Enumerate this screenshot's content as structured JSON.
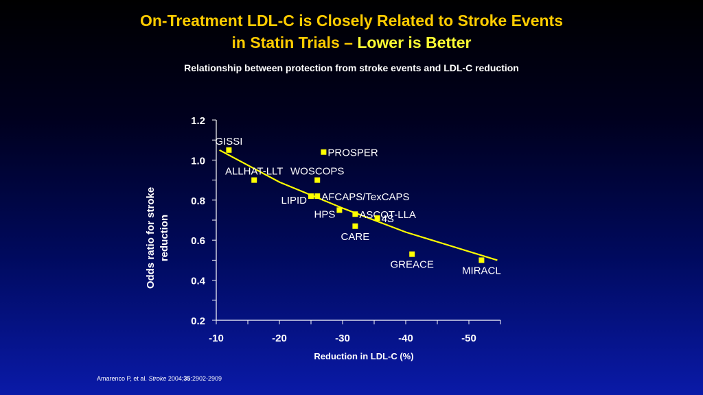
{
  "header": {
    "title_line1": "On-Treatment LDL-C is Closely Related to Stroke Events",
    "title_line2_a": "in Statin Trials – ",
    "title_line2_b": "Lower is Better",
    "subtitle": "Relationship between protection from stroke events and LDL-C reduction"
  },
  "citation": {
    "prefix": "Amarenco P, et al. ",
    "journal": "Stroke",
    "year": " 2004;",
    "volume": "35",
    "pages": ":2902-2909"
  },
  "colors": {
    "point": "#ffff00",
    "trend": "#ffff00",
    "text": "#ffffff",
    "title": "#ffcc00"
  },
  "chart_data": {
    "type": "scatter",
    "xlabel": "Reduction in LDL-C (%)",
    "ylabel": "Odds ratio for stroke reduction",
    "xlim": [
      -10,
      -55
    ],
    "ylim": [
      0.2,
      1.2
    ],
    "xticks": [
      -10,
      -20,
      -30,
      -40,
      -50
    ],
    "yticks": [
      0.2,
      0.4,
      0.6,
      0.8,
      1.0,
      1.2
    ],
    "xtick_labels": [
      "-10",
      "-20",
      "-30",
      "-40",
      "-50"
    ],
    "ytick_labels": [
      "0.2",
      "0.4",
      "0.6",
      "0.8",
      "1.0",
      "1.2"
    ],
    "grid": false,
    "points": [
      {
        "label": "GISSI",
        "x": -12,
        "y": 1.05,
        "label_pos": "above"
      },
      {
        "label": "PROSPER",
        "x": -27,
        "y": 1.04,
        "label_pos": "right"
      },
      {
        "label": "ALLHAT-LLT",
        "x": -16,
        "y": 0.9,
        "label_pos": "above"
      },
      {
        "label": "WOSCOPS",
        "x": -26,
        "y": 0.9,
        "label_pos": "above"
      },
      {
        "label": "AFCAPS/TexCAPS",
        "x": -26,
        "y": 0.82,
        "label_pos": "right"
      },
      {
        "label": "LIPID",
        "x": -25,
        "y": 0.82,
        "label_pos": "left"
      },
      {
        "label": "HPS",
        "x": -29.5,
        "y": 0.75,
        "label_pos": "left"
      },
      {
        "label": "ASCOT-LLA",
        "x": -32,
        "y": 0.73,
        "label_pos": "right"
      },
      {
        "label": "4S",
        "x": -35.5,
        "y": 0.71,
        "label_pos": "right"
      },
      {
        "label": "CARE",
        "x": -32,
        "y": 0.67,
        "label_pos": "below"
      },
      {
        "label": "GREACE",
        "x": -41,
        "y": 0.53,
        "label_pos": "below"
      },
      {
        "label": "MIRACL",
        "x": -52,
        "y": 0.5,
        "label_pos": "below"
      }
    ],
    "trendline": {
      "x": [
        -10.5,
        -20,
        -30,
        -40,
        -54.5
      ],
      "y": [
        1.05,
        0.89,
        0.76,
        0.64,
        0.5
      ]
    }
  }
}
